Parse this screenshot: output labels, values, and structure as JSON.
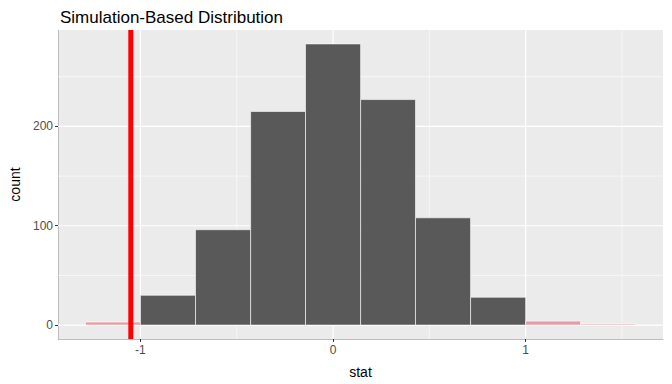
{
  "chart_data": {
    "type": "histogram",
    "title": "Simulation-Based Distribution",
    "x_label": "stat",
    "y_label": "count",
    "bins": [
      -1.285,
      -1.0,
      -0.714,
      -0.428,
      -0.143,
      0.143,
      0.428,
      0.714,
      1.0,
      1.285,
      1.57
    ],
    "counts": [
      3,
      30,
      96,
      215,
      283,
      227,
      108,
      28,
      4,
      1
    ],
    "colors": [
      "#e59ca4",
      "#595959",
      "#595959",
      "#595959",
      "#595959",
      "#595959",
      "#595959",
      "#595959",
      "#e59ca4",
      "#e59ca4"
    ],
    "vline": {
      "value": -1.05,
      "color": "#ff0000"
    },
    "xlim": [
      -1.428,
      1.713
    ],
    "xticks": [
      -1,
      0,
      1
    ],
    "ylim": [
      -14,
      297
    ],
    "yticks": [
      0,
      100,
      200
    ],
    "grid": true
  }
}
